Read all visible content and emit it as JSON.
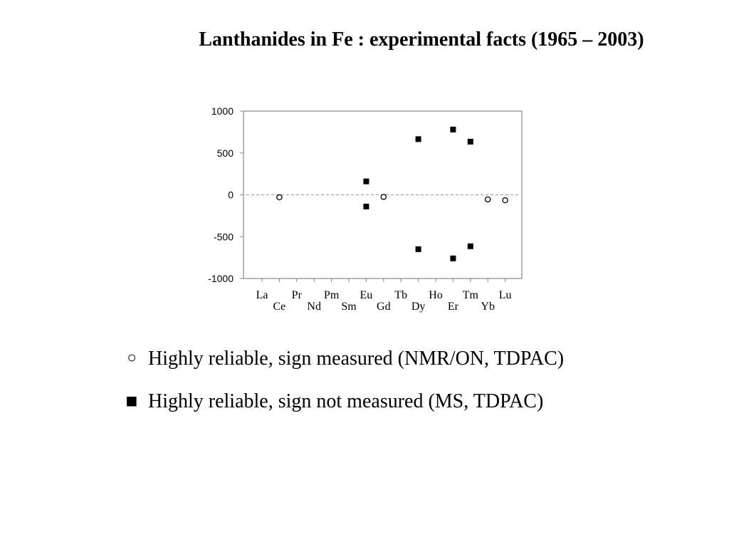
{
  "slide": {
    "title": "Lanthanides in Fe : experimental facts (1965 – 2003)"
  },
  "legend": [
    {
      "symbol": "○",
      "marker": "open-circle",
      "label": "Highly reliable, sign measured (NMR/ON, TDPAC)"
    },
    {
      "symbol": "■",
      "marker": "filled-square",
      "label": "Highly reliable, sign not measured (MS, TDPAC)"
    }
  ],
  "chart_data": {
    "type": "scatter",
    "title": "",
    "xlabel": "",
    "ylabel": "",
    "ylim": [
      -1000,
      1000
    ],
    "yticks": [
      1000,
      500,
      0,
      -500,
      -1000
    ],
    "ytick_labels": [
      "1000",
      "500",
      "0",
      "-500",
      "-1000"
    ],
    "categories": [
      "La",
      "Ce",
      "Pr",
      "Nd",
      "Pm",
      "Sm",
      "Eu",
      "Gd",
      "Tb",
      "Dy",
      "Ho",
      "Er",
      "Tm",
      "Yb",
      "Lu"
    ],
    "zero_line": "dashed",
    "series": [
      {
        "marker": "open-circle",
        "points": [
          {
            "x": "Ce",
            "y": -30
          },
          {
            "x": "Gd",
            "y": -25
          },
          {
            "x": "Yb",
            "y": -55
          },
          {
            "x": "Lu",
            "y": -65
          }
        ]
      },
      {
        "marker": "filled-square",
        "points": [
          {
            "x": "Eu",
            "y": 160
          },
          {
            "x": "Eu",
            "y": -140
          },
          {
            "x": "Dy",
            "y": 665
          },
          {
            "x": "Dy",
            "y": -650
          },
          {
            "x": "Er",
            "y": 780
          },
          {
            "x": "Er",
            "y": -760
          },
          {
            "x": "Tm",
            "y": 635
          },
          {
            "x": "Tm",
            "y": -615
          }
        ]
      }
    ]
  }
}
